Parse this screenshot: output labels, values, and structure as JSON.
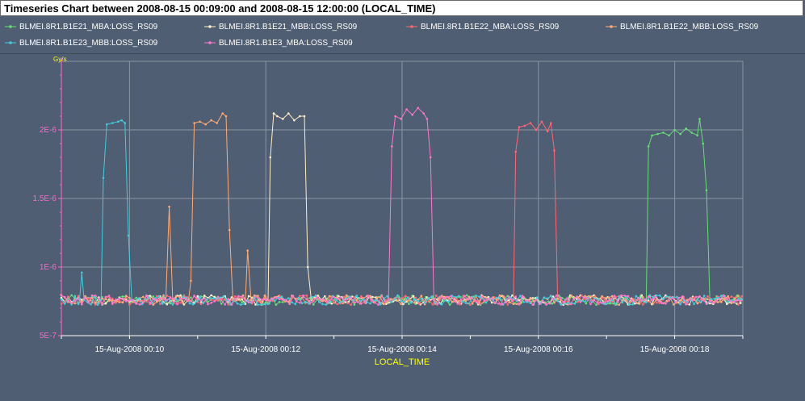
{
  "header": {
    "title": "Timeseries Chart between 2008-08-15 00:09:00 and 2008-08-15 12:00:00 (LOCAL_TIME)"
  },
  "colors": {
    "background": "#4f5e72",
    "grid": "#8a96a6",
    "tick_y": "#ff66cc",
    "axis_label": "#ffff00"
  },
  "chart_data": {
    "type": "line",
    "title": "Timeseries Chart between 2008-08-15 00:09:00 and 2008-08-15 12:00:00 (LOCAL_TIME)",
    "xlabel": "LOCAL_TIME",
    "ylabel": "Gy/s",
    "x_tick_labels": [
      "15-Aug-2008 00:10",
      "15-Aug-2008 00:12",
      "15-Aug-2008 00:14",
      "15-Aug-2008 00:16",
      "15-Aug-2008 00:18"
    ],
    "y_tick_labels": [
      "5E-7",
      "1E-6",
      "1.5E-6",
      "2E-6"
    ],
    "ylim": [
      5e-07,
      2.5e-06
    ],
    "xlim": [
      "2008-08-15 00:09:00",
      "2008-08-15 00:19:00"
    ],
    "baseline": 7.6e-07,
    "series": [
      {
        "name": "BLMEI.8R1.B1E21_MBA:LOSS_RS09",
        "color": "#66dd77",
        "points": [
          [
            "00:17:35",
            7.6e-07
          ],
          [
            "00:17:37",
            1.88e-06
          ],
          [
            "00:17:40",
            1.96e-06
          ],
          [
            "00:17:45",
            1.97e-06
          ],
          [
            "00:17:50",
            1.98e-06
          ],
          [
            "00:17:55",
            1.96e-06
          ],
          [
            "00:18:00",
            2e-06
          ],
          [
            "00:18:05",
            1.97e-06
          ],
          [
            "00:18:10",
            2.01e-06
          ],
          [
            "00:18:15",
            1.98e-06
          ],
          [
            "00:18:20",
            1.96e-06
          ],
          [
            "00:18:22",
            2.08e-06
          ],
          [
            "00:18:25",
            1.9e-06
          ],
          [
            "00:18:28",
            1.56e-06
          ],
          [
            "00:18:31",
            7.6e-07
          ]
        ]
      },
      {
        "name": "BLMEI.8R1.B1E21_MBB:LOSS_RS09",
        "color": "#ffeecc",
        "points": [
          [
            "00:12:02",
            7.6e-07
          ],
          [
            "00:12:04",
            1.8e-06
          ],
          [
            "00:12:07",
            2.12e-06
          ],
          [
            "00:12:10",
            2.1e-06
          ],
          [
            "00:12:15",
            2.08e-06
          ],
          [
            "00:12:20",
            2.12e-06
          ],
          [
            "00:12:25",
            2.07e-06
          ],
          [
            "00:12:30",
            2.1e-06
          ],
          [
            "00:12:34",
            2.1e-06
          ],
          [
            "00:12:37",
            1e-06
          ],
          [
            "00:12:40",
            7.6e-07
          ]
        ]
      },
      {
        "name": "BLMEI.8R1.B1E22_MBA:LOSS_RS09",
        "color": "#ff6677",
        "points": [
          [
            "00:15:38",
            7.6e-07
          ],
          [
            "00:15:40",
            1.84e-06
          ],
          [
            "00:15:43",
            2.02e-06
          ],
          [
            "00:15:48",
            2.03e-06
          ],
          [
            "00:15:53",
            2.05e-06
          ],
          [
            "00:15:58",
            2e-06
          ],
          [
            "00:16:03",
            2.06e-06
          ],
          [
            "00:16:08",
            1.99e-06
          ],
          [
            "00:16:11",
            2.05e-06
          ],
          [
            "00:16:14",
            1.85e-06
          ],
          [
            "00:16:17",
            7.6e-07
          ]
        ]
      },
      {
        "name": "BLMEI.8R1.B1E22_MBB:LOSS_RS09",
        "color": "#ffaa77",
        "points": [
          [
            "00:10:32",
            7.6e-07
          ],
          [
            "00:10:35",
            1.44e-06
          ],
          [
            "00:10:38",
            7.6e-07
          ],
          [
            "00:10:52",
            7.6e-07
          ],
          [
            "00:10:54",
            9e-07
          ],
          [
            "00:10:57",
            2.05e-06
          ],
          [
            "00:11:02",
            2.06e-06
          ],
          [
            "00:11:07",
            2.04e-06
          ],
          [
            "00:11:12",
            2.07e-06
          ],
          [
            "00:11:17",
            2.05e-06
          ],
          [
            "00:11:22",
            2.12e-06
          ],
          [
            "00:11:25",
            2.1e-06
          ],
          [
            "00:11:28",
            1.27e-06
          ],
          [
            "00:11:31",
            7.6e-07
          ],
          [
            "00:11:42",
            7.6e-07
          ],
          [
            "00:11:44",
            1.12e-06
          ],
          [
            "00:11:47",
            7.6e-07
          ]
        ]
      },
      {
        "name": "BLMEI.8R1.B1E23_MBB:LOSS_RS09",
        "color": "#44ccdd",
        "points": [
          [
            "00:09:16",
            7.6e-07
          ],
          [
            "00:09:18",
            9.6e-07
          ],
          [
            "00:09:20",
            7.6e-07
          ],
          [
            "00:09:35",
            7.6e-07
          ],
          [
            "00:09:37",
            1.65e-06
          ],
          [
            "00:09:40",
            2.04e-06
          ],
          [
            "00:09:45",
            2.05e-06
          ],
          [
            "00:09:50",
            2.06e-06
          ],
          [
            "00:09:53",
            2.07e-06
          ],
          [
            "00:09:56",
            2.05e-06
          ],
          [
            "00:09:59",
            1.23e-06
          ],
          [
            "00:10:02",
            7.6e-07
          ]
        ]
      },
      {
        "name": "BLMEI.8R1.B1E3_MBA:LOSS_RS09",
        "color": "#ff77cc",
        "points": [
          [
            "00:13:48",
            7.6e-07
          ],
          [
            "00:13:51",
            1.88e-06
          ],
          [
            "00:13:54",
            2.1e-06
          ],
          [
            "00:13:59",
            2.08e-06
          ],
          [
            "00:14:04",
            2.15e-06
          ],
          [
            "00:14:09",
            2.11e-06
          ],
          [
            "00:14:14",
            2.16e-06
          ],
          [
            "00:14:19",
            2.12e-06
          ],
          [
            "00:14:22",
            2.08e-06
          ],
          [
            "00:14:25",
            1.8e-06
          ],
          [
            "00:14:28",
            7.6e-07
          ]
        ]
      }
    ]
  }
}
